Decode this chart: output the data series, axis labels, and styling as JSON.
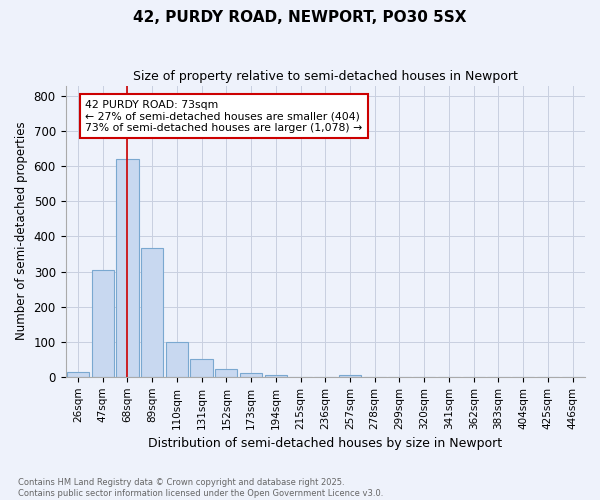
{
  "title1": "42, PURDY ROAD, NEWPORT, PO30 5SX",
  "title2": "Size of property relative to semi-detached houses in Newport",
  "xlabel": "Distribution of semi-detached houses by size in Newport",
  "ylabel": "Number of semi-detached properties",
  "bar_labels": [
    "26sqm",
    "47sqm",
    "68sqm",
    "89sqm",
    "110sqm",
    "131sqm",
    "152sqm",
    "173sqm",
    "194sqm",
    "215sqm",
    "236sqm",
    "257sqm",
    "278sqm",
    "299sqm",
    "320sqm",
    "341sqm",
    "362sqm",
    "383sqm",
    "404sqm",
    "425sqm",
    "446sqm"
  ],
  "bar_values": [
    15,
    305,
    620,
    368,
    99,
    50,
    23,
    10,
    6,
    0,
    0,
    5,
    0,
    0,
    0,
    0,
    0,
    0,
    0,
    0,
    0
  ],
  "bar_color": "#c8d8f0",
  "bar_edge_color": "#7aa8d0",
  "vline_x": 2,
  "vline_color": "#cc0000",
  "annotation_text": "42 PURDY ROAD: 73sqm\n← 27% of semi-detached houses are smaller (404)\n73% of semi-detached houses are larger (1,078) →",
  "annotation_box_color": "#cc0000",
  "ylim": [
    0,
    830
  ],
  "yticks": [
    0,
    100,
    200,
    300,
    400,
    500,
    600,
    700,
    800
  ],
  "footnote": "Contains HM Land Registry data © Crown copyright and database right 2025.\nContains public sector information licensed under the Open Government Licence v3.0.",
  "bg_color": "#eef2fb",
  "plot_bg_color": "#eef2fb",
  "grid_color": "#c8cfe0"
}
